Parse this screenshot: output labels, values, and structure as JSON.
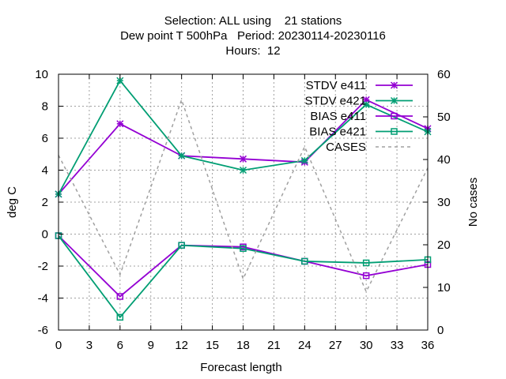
{
  "chart_data": {
    "type": "line",
    "title_lines": [
      "Selection: ALL using    21 stations",
      "Dew point T 500hPa   Period: 20230114-20230116",
      "Hours:  12"
    ],
    "xlabel": "Forecast length",
    "ylabel": "deg C",
    "y2label": "No cases",
    "xlim": [
      0,
      36
    ],
    "ylim": [
      -6,
      10
    ],
    "y2lim": [
      0,
      60
    ],
    "xticks": [
      0,
      3,
      6,
      9,
      12,
      15,
      18,
      21,
      24,
      27,
      30,
      33,
      36
    ],
    "yticks": [
      -6,
      -4,
      -2,
      0,
      2,
      4,
      6,
      8,
      10
    ],
    "y2ticks": [
      0,
      10,
      20,
      30,
      40,
      50,
      60
    ],
    "grid": true,
    "legend_position": "top-right",
    "x": [
      0,
      6,
      12,
      18,
      24,
      30,
      36
    ],
    "series": [
      {
        "name": "STDV e411",
        "axis": "y",
        "color": "#9400d3",
        "marker": "star",
        "dash": false,
        "values": [
          2.5,
          6.9,
          4.9,
          4.7,
          4.5,
          8.4,
          6.6
        ]
      },
      {
        "name": "STDV e421",
        "axis": "y",
        "color": "#009e73",
        "marker": "star",
        "dash": false,
        "values": [
          2.5,
          9.6,
          4.9,
          4.0,
          4.6,
          8.1,
          6.4
        ]
      },
      {
        "name": "BIAS e411",
        "axis": "y",
        "color": "#9400d3",
        "marker": "square",
        "dash": false,
        "values": [
          -0.1,
          -3.9,
          -0.7,
          -0.8,
          -1.7,
          -2.6,
          -1.9
        ]
      },
      {
        "name": "BIAS e421",
        "axis": "y",
        "color": "#009e73",
        "marker": "square",
        "dash": false,
        "values": [
          -0.1,
          -5.2,
          -0.7,
          -0.9,
          -1.7,
          -1.8,
          -1.6
        ]
      },
      {
        "name": "CASES",
        "axis": "y2",
        "color": "#a0a0a0",
        "marker": "none",
        "dash": true,
        "values": [
          41,
          13,
          54,
          12,
          43,
          9,
          38
        ]
      }
    ]
  }
}
